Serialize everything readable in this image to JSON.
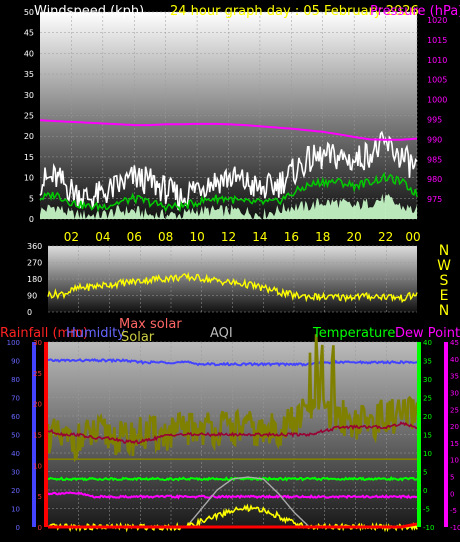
{
  "colors": {
    "background": "#000000",
    "axis_white": "#ffffff",
    "time_labels": "#ffff00",
    "pressure": "#ff00ff",
    "gust": "#ffffff",
    "wind_avg": "#00cc00",
    "wind_min": "#ccffcc",
    "wind_dir": "#ffff00",
    "rain": "#ff0000",
    "humidity": "#4444ff",
    "solar": "#ffff00",
    "max_solar": "#aaaaaa",
    "aqi": "#808000",
    "temperature": "#00ff00",
    "dew_point": "#ff00ff",
    "feels_like": "#990033"
  },
  "chart_data": [
    {
      "type": "line",
      "title": "24 hour graph day : 05 February 2026",
      "left_title": "Windspeed (kph)",
      "right_title": "Pressure (hPa)",
      "x_tick_labels": [
        "02",
        "04",
        "06",
        "08",
        "10",
        "12",
        "14",
        "16",
        "18",
        "20",
        "22",
        "00"
      ],
      "left_ticks": [
        "0",
        "5",
        "10",
        "15",
        "20",
        "25",
        "30",
        "35",
        "40",
        "45",
        "50"
      ],
      "right_ticks": [
        "975",
        "980",
        "985",
        "990",
        "995",
        "1000",
        "1005",
        "1010",
        "1015",
        "1020"
      ],
      "ylim": [
        0,
        50
      ],
      "y2lim": [
        970,
        1022
      ],
      "hours": [
        0,
        1,
        2,
        3,
        4,
        5,
        6,
        7,
        8,
        9,
        10,
        11,
        12,
        13,
        14,
        15,
        16,
        17,
        18,
        19,
        20,
        21,
        22,
        23,
        24
      ],
      "series": [
        {
          "name": "Pressure",
          "axis": "right",
          "values": [
            994.8,
            994.6,
            994.4,
            994.2,
            994.0,
            993.8,
            993.6,
            993.6,
            993.8,
            993.8,
            993.9,
            993.9,
            993.8,
            993.6,
            993.3,
            993.0,
            992.7,
            992.3,
            991.9,
            991.3,
            990.6,
            990.0,
            989.9,
            989.9,
            990.2
          ]
        },
        {
          "name": "Gust",
          "axis": "left",
          "values": [
            9,
            10,
            7,
            5,
            6,
            8,
            10,
            9,
            7,
            5,
            8,
            9,
            10,
            9,
            7,
            8,
            11,
            14,
            15,
            15,
            14,
            16,
            18,
            15,
            12
          ]
        },
        {
          "name": "Wind average",
          "axis": "left",
          "values": [
            5,
            6,
            4,
            3,
            3,
            4,
            5,
            4,
            3,
            3,
            4,
            5,
            5,
            4,
            4,
            4,
            6,
            8,
            9,
            9,
            8,
            9,
            10,
            9,
            6
          ]
        },
        {
          "name": "Wind minimum",
          "axis": "left",
          "values": [
            2,
            3,
            1,
            1,
            1,
            2,
            2,
            1,
            1,
            1,
            2,
            2,
            2,
            2,
            1,
            2,
            3,
            3,
            4,
            4,
            3,
            4,
            5,
            3,
            2
          ]
        }
      ]
    },
    {
      "type": "line",
      "left_ticks": [
        "0",
        "90",
        "180",
        "270",
        "360"
      ],
      "right_labels": [
        "N",
        "W",
        "S",
        "E",
        "N"
      ],
      "ylim": [
        0,
        360
      ],
      "hours": [
        0,
        1,
        2,
        3,
        4,
        5,
        6,
        7,
        8,
        9,
        10,
        11,
        12,
        13,
        14,
        15,
        16,
        17,
        18,
        19,
        20,
        21,
        22,
        23,
        24
      ],
      "series": [
        {
          "name": "Wind direction",
          "values": [
            95,
            100,
            130,
            140,
            150,
            160,
            170,
            180,
            185,
            190,
            185,
            170,
            160,
            150,
            130,
            110,
            90,
            85,
            80,
            80,
            85,
            85,
            85,
            75,
            95
          ]
        }
      ]
    },
    {
      "type": "line",
      "titles": [
        "Rainfall (mm)",
        "Humidity",
        "Max solar",
        "Solar",
        "AQI",
        "Temperature",
        "Dew Point"
      ],
      "rain_ticks": [
        "0",
        "5",
        "10",
        "15",
        "20",
        "25",
        "30"
      ],
      "humidity_ticks": [
        "0",
        "10",
        "20",
        "30",
        "40",
        "50",
        "60",
        "70",
        "80",
        "90",
        "100"
      ],
      "temp_ticks": [
        "-10",
        "-5",
        "0",
        "5",
        "10",
        "15",
        "20",
        "25",
        "30",
        "35",
        "40"
      ],
      "dew_ticks": [
        "-10",
        "-5",
        "0",
        "5",
        "10",
        "15",
        "20",
        "25",
        "30",
        "35",
        "40",
        "45"
      ],
      "hours": [
        0,
        1,
        2,
        3,
        4,
        5,
        6,
        7,
        8,
        9,
        10,
        11,
        12,
        13,
        14,
        15,
        16,
        17,
        18,
        19,
        20,
        21,
        22,
        23,
        24
      ],
      "series": [
        {
          "name": "Humidity",
          "axis": "humidity",
          "ylim": [
            0,
            100
          ],
          "values": [
            90,
            90,
            90,
            90,
            90,
            90,
            89,
            89,
            89,
            89,
            88,
            88,
            88,
            88,
            88,
            88,
            88,
            88,
            89,
            89,
            89,
            89,
            89,
            89,
            89
          ]
        },
        {
          "name": "AQI",
          "axis": "rain",
          "ylim": [
            0,
            30
          ],
          "values": [
            15,
            14,
            14,
            15,
            15,
            14,
            15,
            15,
            15,
            16,
            16,
            16,
            16,
            16,
            15,
            16,
            17,
            19,
            18,
            18,
            17,
            17,
            18,
            18,
            18
          ]
        },
        {
          "name": "Feels like",
          "axis": "temp",
          "ylim": [
            -10,
            40
          ],
          "values": [
            16,
            15,
            15,
            14,
            14,
            13,
            13,
            14,
            15,
            15,
            15,
            15,
            15,
            15,
            15,
            15,
            15,
            15,
            16,
            17,
            17,
            17,
            17,
            18,
            17
          ]
        },
        {
          "name": "AQI baseline",
          "axis": "rain",
          "ylim": [
            0,
            30
          ],
          "values": [
            11,
            11,
            11,
            11,
            11,
            11,
            11,
            11,
            11,
            11,
            11,
            11,
            11,
            11,
            11,
            11,
            11,
            11,
            11,
            11,
            11,
            11,
            11,
            11,
            11
          ]
        },
        {
          "name": "Temperature",
          "axis": "temp",
          "ylim": [
            -10,
            40
          ],
          "values": [
            3,
            3,
            3,
            3,
            3,
            3,
            3,
            3,
            3,
            3,
            3,
            3,
            3,
            3,
            3,
            3,
            3,
            3,
            3,
            3,
            3,
            3,
            3,
            3,
            3
          ]
        },
        {
          "name": "Dew Point",
          "axis": "dew",
          "ylim": [
            -10,
            45
          ],
          "values": [
            0,
            0,
            0,
            -1,
            -1,
            -1,
            -1,
            -1,
            -1,
            -1,
            -1,
            -1,
            -1,
            -1,
            -1,
            -1,
            -1,
            -1,
            -1,
            -1,
            -1,
            -1,
            -1,
            -1,
            -1
          ]
        },
        {
          "name": "Max solar",
          "axis": "humidity",
          "ylim": [
            0,
            100
          ],
          "values": [
            0,
            0,
            0,
            0,
            0,
            0,
            0,
            0,
            0,
            0,
            10,
            20,
            26,
            27,
            26,
            18,
            8,
            0,
            0,
            0,
            0,
            0,
            0,
            0,
            0
          ]
        },
        {
          "name": "Solar",
          "axis": "humidity",
          "ylim": [
            0,
            100
          ],
          "values": [
            0,
            0,
            0,
            0,
            0,
            0,
            0,
            0,
            0,
            0,
            3,
            6,
            9,
            10,
            9,
            6,
            2,
            0,
            0,
            0,
            0,
            0,
            0,
            0,
            0
          ]
        },
        {
          "name": "Rainfall",
          "axis": "rain",
          "ylim": [
            0,
            30
          ],
          "values": [
            0,
            0,
            0,
            0,
            0,
            0,
            0,
            0,
            0,
            0,
            0,
            0,
            0,
            0,
            0,
            0,
            0,
            0,
            0,
            0,
            0,
            0,
            0,
            0,
            0.5
          ]
        }
      ]
    }
  ]
}
